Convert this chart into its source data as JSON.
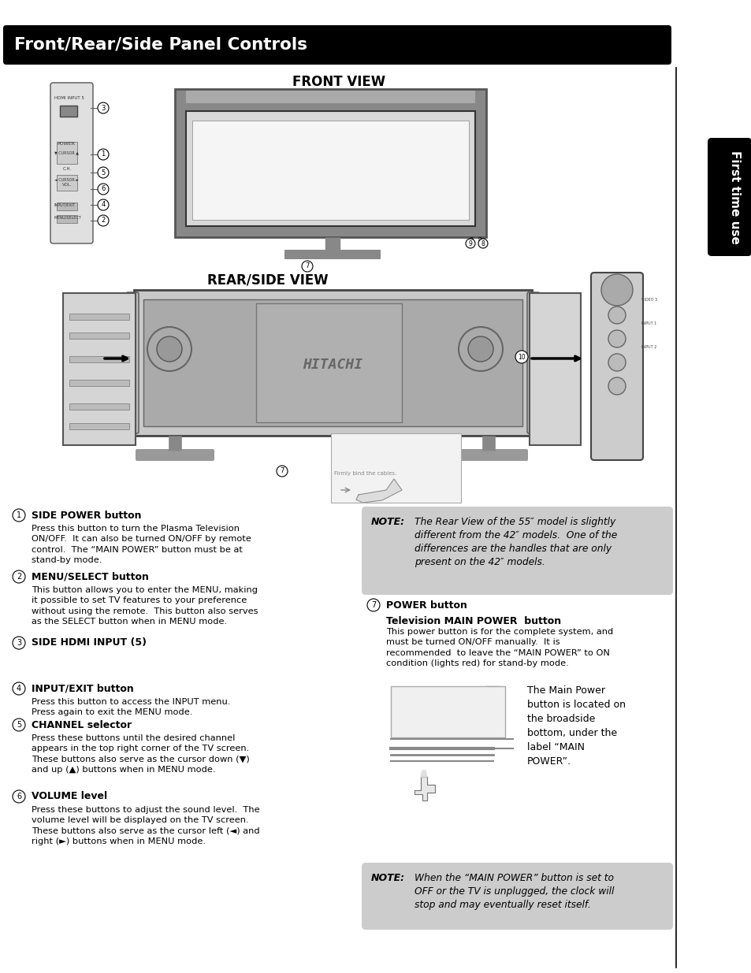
{
  "title": "Front/Rear/Side Panel Controls",
  "sidebar_text": "First time use",
  "front_view_label": "FRONT VIEW",
  "rear_side_label": "REAR/SIDE VIEW",
  "note1_label": "NOTE:",
  "note1_text": "The Rear View of the 55″ model is slightly\ndifferent from the 42″ models.  One of the\ndifferences are the handles that are only\npresent on the 42″ models.",
  "note2_label": "NOTE:",
  "note2_text": "When the “MAIN POWER” button is set to\nOFF or the TV is unplugged, the clock will\nstop and may eventually reset itself.",
  "items_left": [
    {
      "num": "1",
      "title": "SIDE POWER button",
      "text": "Press this button to turn the Plasma Television\nON/OFF.  It can also be turned ON/OFF by remote\ncontrol.  The “MAIN POWER” button must be at\nstand-by mode."
    },
    {
      "num": "2",
      "title": "MENU/SELECT button",
      "text": "This button allows you to enter the MENU, making\nit possible to set TV features to your preference\nwithout using the remote.  This button also serves\nas the SELECT button when in MENU mode."
    },
    {
      "num": "3",
      "title": "SIDE HDMI INPUT (5)",
      "text": ""
    },
    {
      "num": "4",
      "title": "INPUT/EXIT button",
      "text": "Press this button to access the INPUT menu.\nPress again to exit the MENU mode."
    },
    {
      "num": "5",
      "title": "CHANNEL selector",
      "text": "Press these buttons until the desired channel\nappears in the top right corner of the TV screen.\nThese buttons also serve as the cursor down (▼)\nand up (▲) buttons when in MENU mode."
    },
    {
      "num": "6",
      "title": "VOLUME level",
      "text": "Press these buttons to adjust the sound level.  The\nvolume level will be displayed on the TV screen.\nThese buttons also serve as the cursor left (◄) and\nright (►) buttons when in MENU mode."
    }
  ],
  "item7_title": "POWER button",
  "item7_subtitle": "Television MAIN POWER  button",
  "item7_text": "This power button is for the complete system, and\nmust be turned ON/OFF manually.  It is\nrecommended  to leave the “MAIN POWER” to ON\ncondition (lights red) for stand-by mode.",
  "main_power_text": "The Main Power\nbutton is located on\nthe broadside\nbottom, under the\nlabel “MAIN\nPOWER”."
}
